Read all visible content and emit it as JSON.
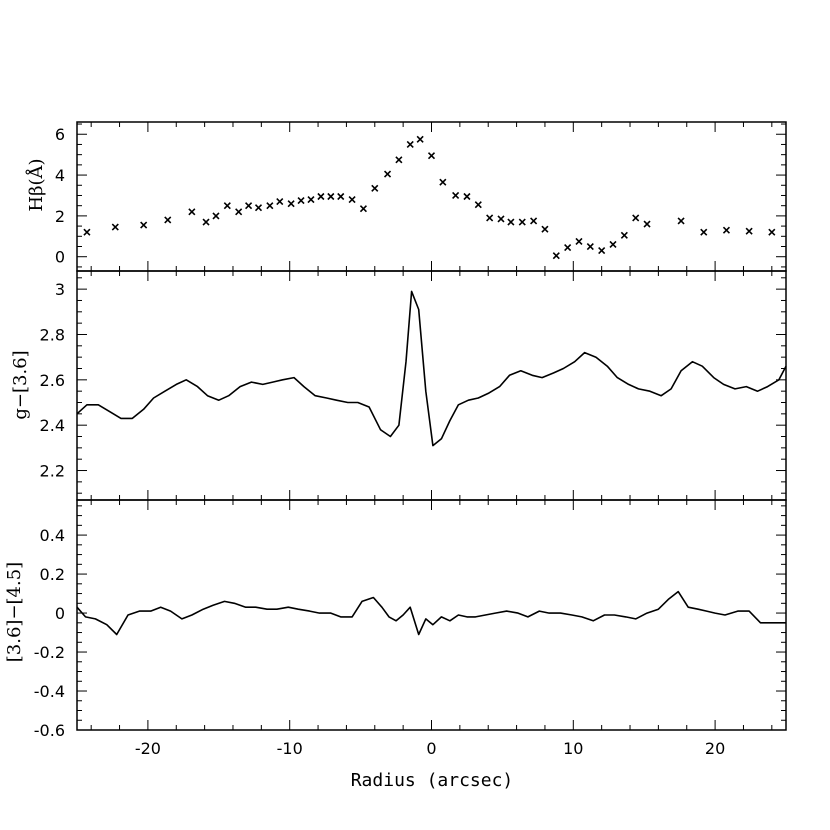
{
  "chart_data": [
    {
      "type": "scatter",
      "marker": "x",
      "ylabel": "Hβ(Å)",
      "xlabel": "",
      "xlim": [
        -25,
        25
      ],
      "ylim": [
        -0.7,
        6.6
      ],
      "yticks": [
        0,
        2,
        4,
        6
      ],
      "ytick_labels": [
        "0",
        "2",
        "4",
        "6"
      ],
      "x": [
        -24.3,
        -22.3,
        -20.3,
        -18.6,
        -16.9,
        -15.9,
        -15.2,
        -14.4,
        -13.6,
        -12.9,
        -12.2,
        -11.4,
        -10.7,
        -9.9,
        -9.2,
        -8.5,
        -7.8,
        -7.1,
        -6.4,
        -5.6,
        -4.8,
        -4.0,
        -3.1,
        -2.3,
        -1.5,
        -0.8,
        0.0,
        0.8,
        1.7,
        2.5,
        3.3,
        4.1,
        4.9,
        5.6,
        6.4,
        7.2,
        8.0,
        8.8,
        9.6,
        10.4,
        11.2,
        12.0,
        12.8,
        13.6,
        14.4,
        15.2,
        17.6,
        19.2,
        20.8,
        22.4,
        24.0
      ],
      "y": [
        1.2,
        1.45,
        1.55,
        1.8,
        2.2,
        1.7,
        2.0,
        2.5,
        2.2,
        2.5,
        2.4,
        2.5,
        2.7,
        2.6,
        2.75,
        2.8,
        2.95,
        2.95,
        2.95,
        2.8,
        2.35,
        3.35,
        4.05,
        4.75,
        5.5,
        5.75,
        4.95,
        3.65,
        3.0,
        2.95,
        2.55,
        1.9,
        1.85,
        1.7,
        1.7,
        1.75,
        1.35,
        0.05,
        0.45,
        0.75,
        0.5,
        0.3,
        0.6,
        1.05,
        1.9,
        1.6,
        1.75,
        1.2,
        1.3,
        1.25,
        1.2
      ]
    },
    {
      "type": "line",
      "ylabel": "g−[3.6]",
      "xlabel": "",
      "xlim": [
        -25,
        25
      ],
      "ylim": [
        2.07,
        3.08
      ],
      "yticks": [
        2.2,
        2.4,
        2.6,
        2.8,
        3.0
      ],
      "ytick_labels": [
        "2.2",
        "2.4",
        "2.6",
        "2.8",
        "3"
      ],
      "x": [
        -25.0,
        -24.3,
        -23.5,
        -22.7,
        -21.9,
        -21.1,
        -20.3,
        -19.6,
        -18.8,
        -18.0,
        -17.3,
        -16.5,
        -15.8,
        -15.0,
        -14.3,
        -13.5,
        -12.7,
        -11.9,
        -11.2,
        -10.5,
        -9.7,
        -9.0,
        -8.2,
        -7.4,
        -6.7,
        -5.9,
        -5.2,
        -4.4,
        -3.6,
        -2.9,
        -2.3,
        -1.8,
        -1.4,
        -0.9,
        -0.4,
        0.1,
        0.7,
        1.3,
        1.9,
        2.6,
        3.3,
        4.0,
        4.8,
        5.5,
        6.3,
        7.1,
        7.8,
        8.6,
        9.3,
        10.1,
        10.8,
        11.6,
        12.4,
        13.1,
        13.9,
        14.6,
        15.4,
        16.2,
        16.9,
        17.6,
        18.4,
        19.1,
        19.9,
        20.6,
        21.4,
        22.2,
        23.0,
        23.7,
        24.5,
        25.0
      ],
      "y": [
        2.45,
        2.49,
        2.49,
        2.46,
        2.43,
        2.43,
        2.47,
        2.52,
        2.55,
        2.58,
        2.6,
        2.57,
        2.53,
        2.51,
        2.53,
        2.57,
        2.59,
        2.58,
        2.59,
        2.6,
        2.61,
        2.57,
        2.53,
        2.52,
        2.51,
        2.5,
        2.5,
        2.48,
        2.38,
        2.35,
        2.4,
        2.68,
        2.99,
        2.91,
        2.55,
        2.31,
        2.34,
        2.42,
        2.49,
        2.51,
        2.52,
        2.54,
        2.57,
        2.62,
        2.64,
        2.62,
        2.61,
        2.63,
        2.65,
        2.68,
        2.72,
        2.7,
        2.66,
        2.61,
        2.58,
        2.56,
        2.55,
        2.53,
        2.56,
        2.64,
        2.68,
        2.66,
        2.61,
        2.58,
        2.56,
        2.57,
        2.55,
        2.57,
        2.6,
        2.66
      ]
    },
    {
      "type": "line",
      "ylabel": "[3.6]−[4.5]",
      "xlabel": "Radius (arcsec)",
      "xlim": [
        -25,
        25
      ],
      "ylim": [
        -0.6,
        0.58
      ],
      "yticks": [
        -0.6,
        -0.4,
        -0.2,
        0,
        0.2,
        0.4
      ],
      "ytick_labels": [
        "-0.6",
        "-0.4",
        "-0.2",
        "0",
        "0.2",
        "0.4"
      ],
      "xticks": [
        -20,
        -10,
        0,
        10,
        20
      ],
      "xtick_labels": [
        "-20",
        "-10",
        "0",
        "10",
        "20"
      ],
      "x": [
        -25.0,
        -24.4,
        -23.7,
        -22.9,
        -22.2,
        -21.4,
        -20.6,
        -19.8,
        -19.1,
        -18.4,
        -17.6,
        -16.9,
        -16.1,
        -15.4,
        -14.6,
        -13.9,
        -13.1,
        -12.4,
        -11.6,
        -10.9,
        -10.1,
        -9.4,
        -8.6,
        -7.9,
        -7.1,
        -6.4,
        -5.6,
        -4.9,
        -4.1,
        -3.5,
        -3.0,
        -2.5,
        -2.0,
        -1.5,
        -0.9,
        -0.4,
        0.1,
        0.7,
        1.3,
        1.9,
        2.5,
        3.1,
        3.8,
        4.5,
        5.3,
        6.1,
        6.8,
        7.6,
        8.3,
        9.1,
        9.9,
        10.6,
        11.4,
        12.2,
        12.9,
        13.7,
        14.4,
        15.2,
        16.0,
        16.7,
        17.4,
        18.1,
        18.8,
        19.4,
        20.0,
        20.7,
        21.6,
        22.4,
        23.2,
        24.0,
        24.6,
        25.0
      ],
      "y": [
        0.03,
        -0.02,
        -0.03,
        -0.06,
        -0.11,
        -0.01,
        0.01,
        0.01,
        0.03,
        0.01,
        -0.03,
        -0.01,
        0.02,
        0.04,
        0.06,
        0.05,
        0.03,
        0.03,
        0.02,
        0.02,
        0.03,
        0.02,
        0.01,
        0.0,
        0.0,
        -0.02,
        -0.02,
        0.06,
        0.08,
        0.03,
        -0.02,
        -0.04,
        -0.01,
        0.03,
        -0.11,
        -0.03,
        -0.06,
        -0.02,
        -0.04,
        -0.01,
        -0.02,
        -0.02,
        -0.01,
        0.0,
        0.01,
        0.0,
        -0.02,
        0.01,
        0.0,
        0.0,
        -0.01,
        -0.02,
        -0.04,
        -0.01,
        -0.01,
        -0.02,
        -0.03,
        0.0,
        0.02,
        0.07,
        0.11,
        0.03,
        0.02,
        0.01,
        0.0,
        -0.01,
        0.01,
        0.01,
        -0.05,
        -0.05,
        -0.05,
        -0.05
      ]
    }
  ]
}
